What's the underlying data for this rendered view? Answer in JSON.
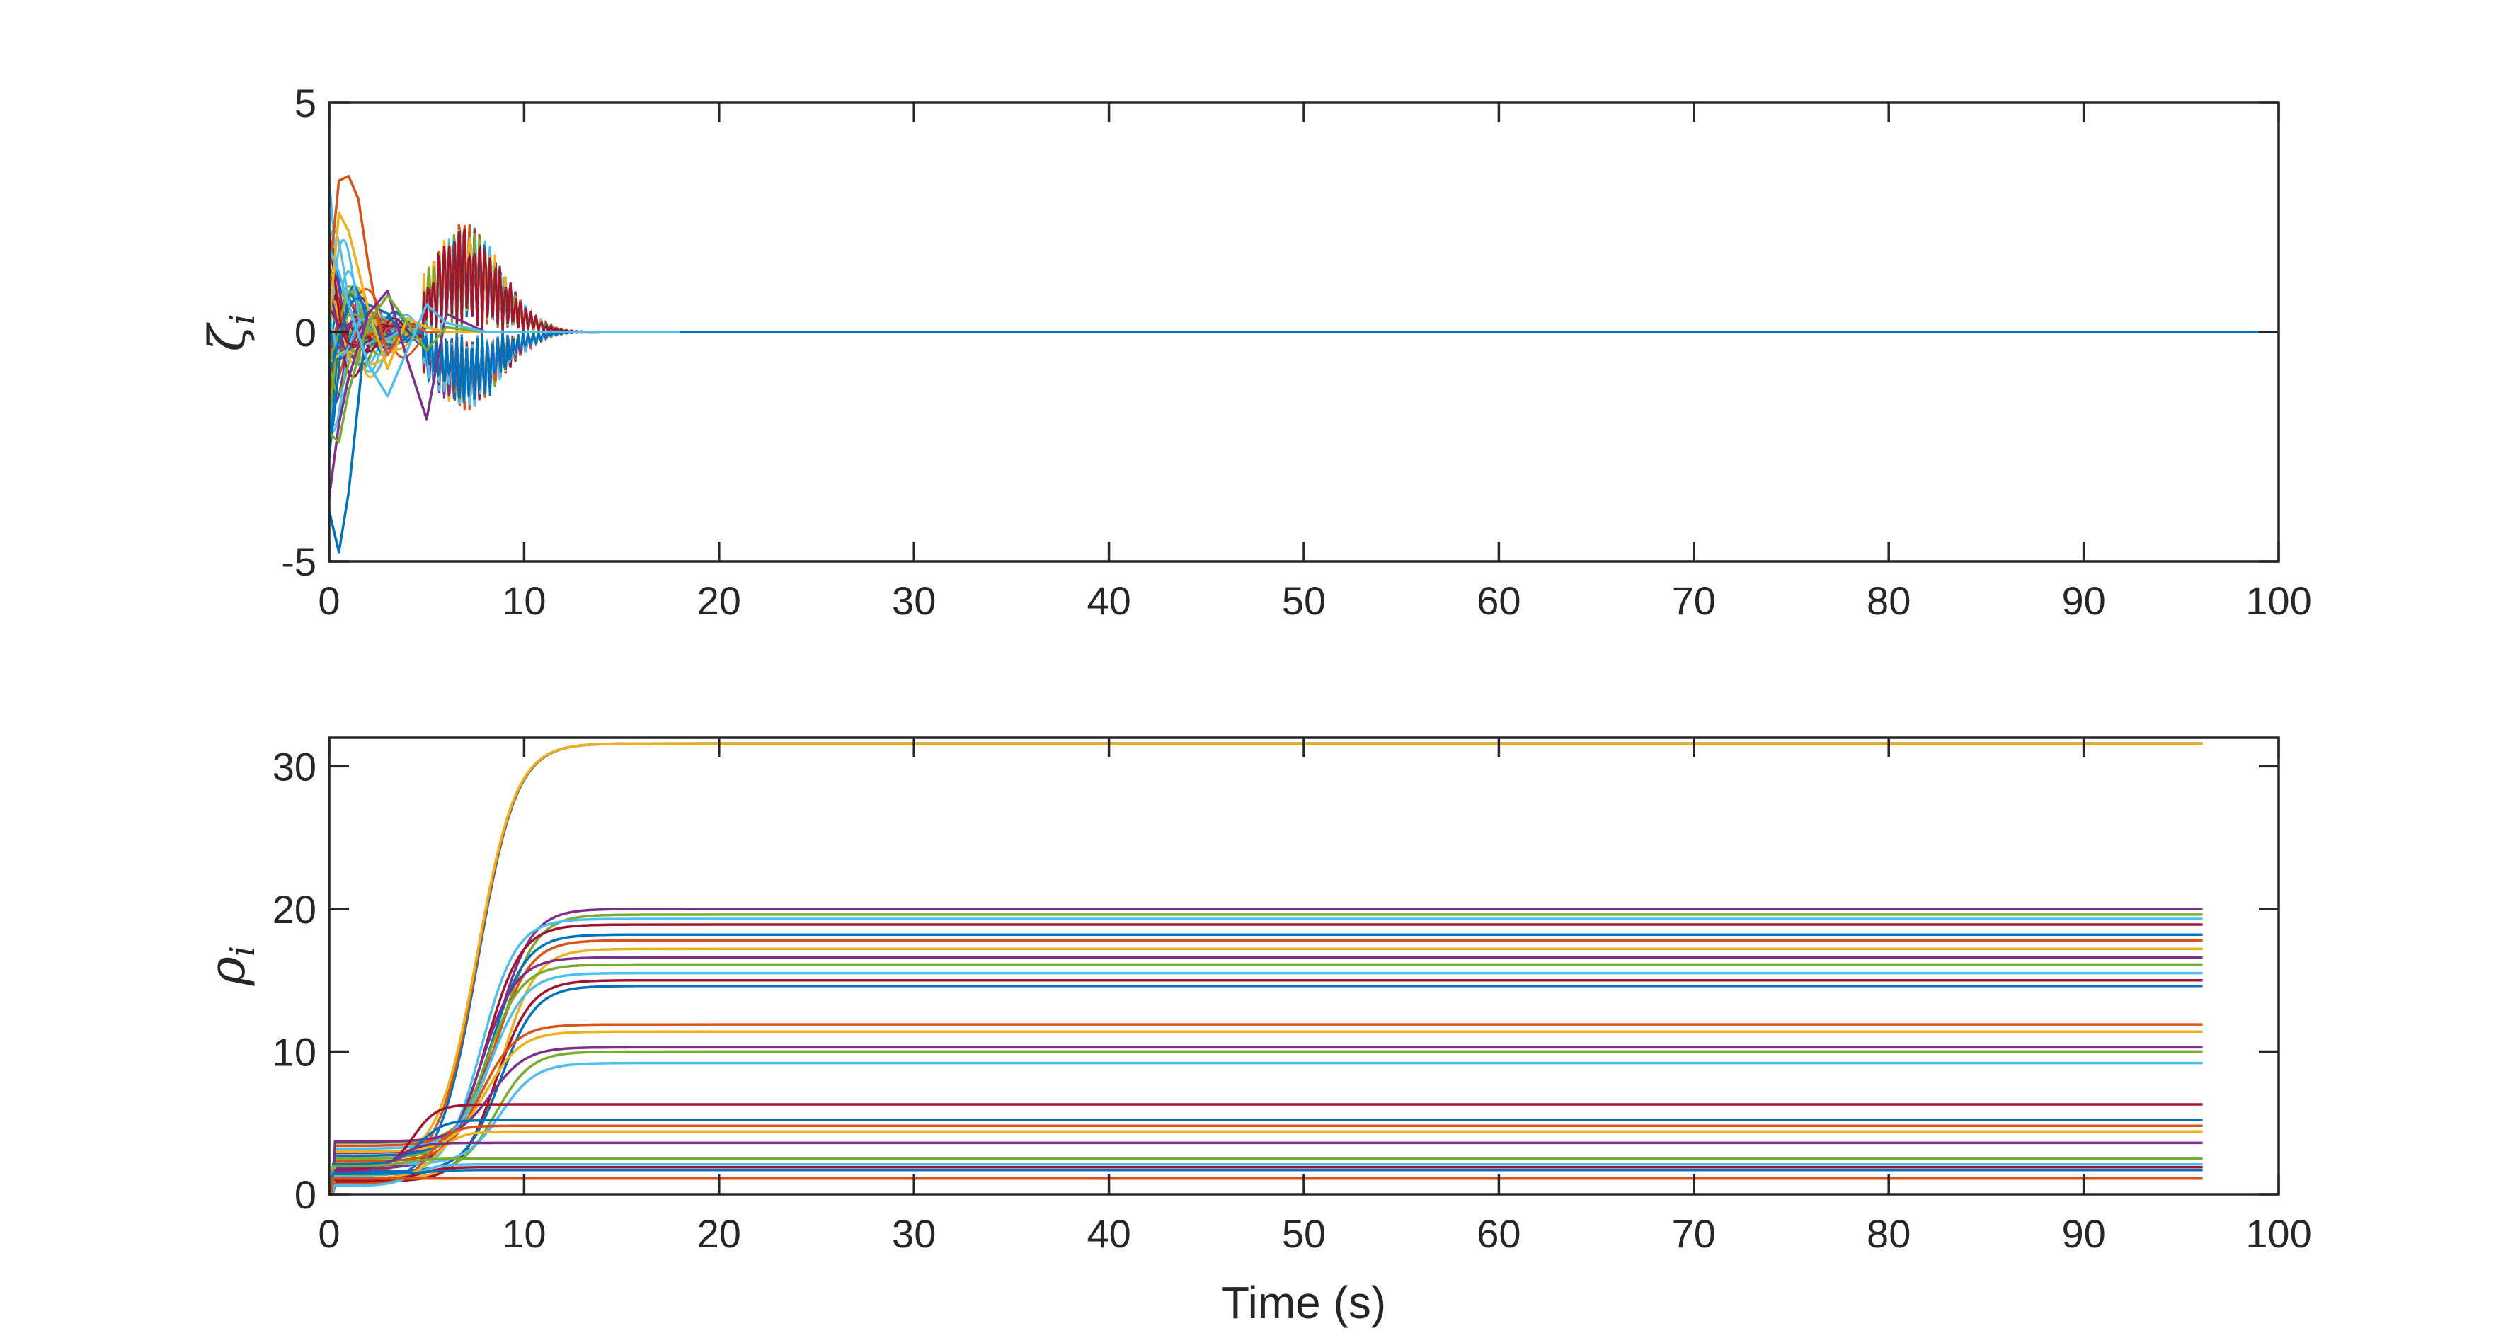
{
  "chart_data": [
    {
      "type": "line",
      "ylabel_symbol": "ζ",
      "ylabel_subscript": "i",
      "xlabel": "",
      "xlim": [
        0,
        100
      ],
      "ylim": [
        -5,
        5
      ],
      "xticks": [
        0,
        10,
        20,
        30,
        40,
        50,
        60,
        70,
        80,
        90,
        100
      ],
      "yticks": [
        -5,
        0,
        5
      ],
      "xtick_labels": [
        "0",
        "10",
        "20",
        "30",
        "40",
        "50",
        "60",
        "70",
        "80",
        "90",
        "100"
      ],
      "ytick_labels": [
        "-5",
        "0",
        "5"
      ],
      "description_values": {
        "settles_to": 0,
        "settling_time": 18,
        "max_value": 3.4,
        "min_value": -4.8,
        "oscillation_peak_time": 6.8,
        "oscillation_peak": 2.5,
        "oscillation_trough_time": 8.5,
        "oscillation_trough": -1.8
      },
      "series_count": 50,
      "series": [
        {
          "values_note": "transient",
          "t": [
            0,
            0.5,
            1,
            1.5,
            2,
            3,
            4,
            5,
            6,
            8,
            12,
            100
          ],
          "values": [
            -3.9,
            -4.8,
            -3.5,
            -1.5,
            0.6,
            0.4,
            -0.2,
            0.1,
            0,
            0,
            0,
            0
          ]
        },
        {
          "t": [
            0,
            0.5,
            1,
            1.5,
            2,
            2.5,
            3,
            4,
            5,
            8,
            12,
            100
          ],
          "values": [
            1.2,
            3.3,
            3.4,
            2.9,
            1.5,
            0.3,
            -0.5,
            0.2,
            0,
            0,
            0,
            0
          ]
        },
        {
          "t": [
            0,
            0.5,
            1,
            2,
            3,
            4,
            5,
            6,
            8,
            12,
            100
          ],
          "values": [
            0.2,
            2.6,
            2.2,
            0.5,
            -0.8,
            0.3,
            0.1,
            0,
            0,
            0,
            0
          ]
        },
        {
          "t": [
            0,
            0.5,
            1,
            2,
            3,
            4,
            5,
            6,
            8,
            12,
            100
          ],
          "values": [
            -3.6,
            -2.0,
            -1.0,
            0.4,
            0.9,
            -0.6,
            -1.9,
            0.4,
            0,
            0,
            0
          ]
        },
        {
          "t": [
            0,
            0.5,
            1,
            2,
            3,
            4,
            5,
            6,
            8,
            12,
            100
          ],
          "values": [
            -2.2,
            -2.4,
            -1.3,
            0.2,
            0.8,
            0.2,
            -0.4,
            0.1,
            0,
            0,
            0
          ]
        },
        {
          "t": [
            0,
            0.5,
            1,
            2,
            3,
            4,
            5,
            6,
            8,
            12,
            100
          ],
          "values": [
            1.8,
            1.3,
            0.6,
            -0.7,
            -1.4,
            -0.4,
            0.6,
            0.2,
            0,
            0,
            0
          ]
        }
      ],
      "colors": [
        "#0072BD",
        "#D95319",
        "#EDB120",
        "#7E2F8E",
        "#77AC30",
        "#4DBEEE",
        "#A2142F"
      ]
    },
    {
      "type": "line",
      "ylabel_symbol": "ρ",
      "ylabel_subscript": "i",
      "xlabel": "Time (s)",
      "xlim": [
        0,
        100
      ],
      "ylim": [
        0,
        32
      ],
      "xticks": [
        0,
        10,
        20,
        30,
        40,
        50,
        60,
        70,
        80,
        90,
        100
      ],
      "yticks": [
        0,
        10,
        20,
        30
      ],
      "xtick_labels": [
        "0",
        "10",
        "20",
        "30",
        "40",
        "50",
        "60",
        "70",
        "80",
        "90",
        "100"
      ],
      "ytick_labels": [
        "0",
        "10",
        "20",
        "30"
      ],
      "final_values": [
        31.6,
        31.6,
        31.6,
        20.0,
        19.6,
        19.3,
        18.9,
        18.2,
        17.8,
        17.2,
        16.6,
        16.1,
        15.5,
        15.0,
        14.6,
        11.9,
        11.4,
        10.3,
        10.0,
        9.2,
        6.3,
        5.2,
        4.8,
        4.4,
        3.6,
        2.5,
        2.1,
        1.9,
        1.7,
        1.1
      ],
      "colors": [
        "#0072BD",
        "#D95319",
        "#EDB120",
        "#7E2F8E",
        "#77AC30",
        "#4DBEEE",
        "#A2142F"
      ]
    }
  ]
}
